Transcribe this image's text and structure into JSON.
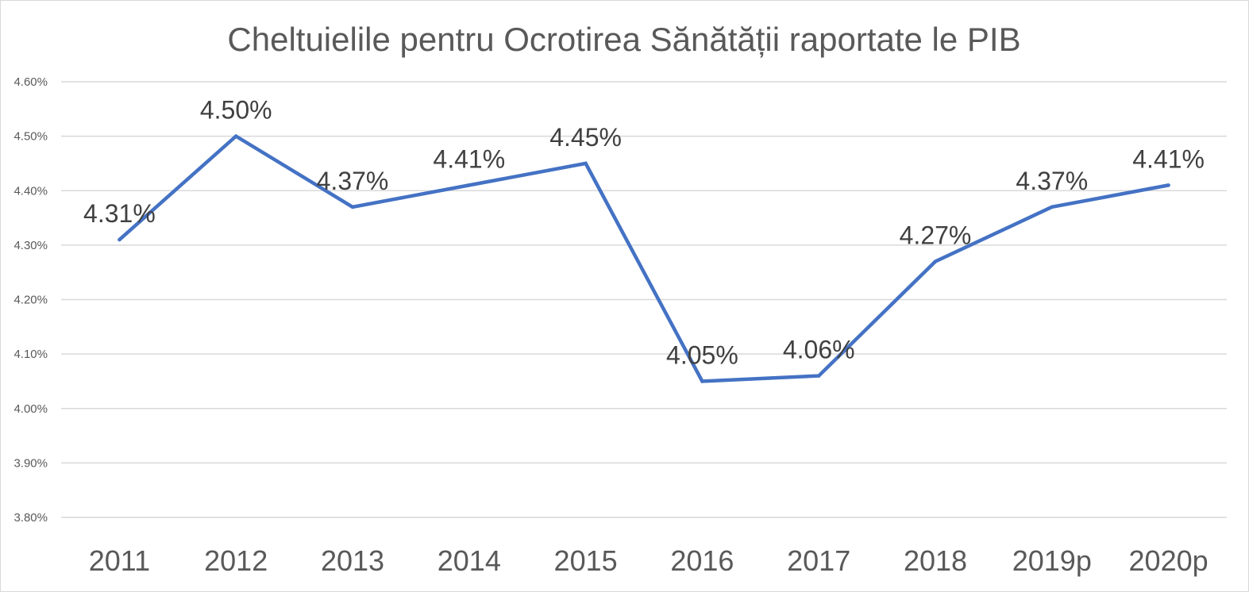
{
  "chart_data": {
    "type": "line",
    "title": "Cheltuielile pentru Ocrotirea Sănătății raportate le PIB",
    "xlabel": "",
    "ylabel": "",
    "categories": [
      "2011",
      "2012",
      "2013",
      "2014",
      "2015",
      "2016",
      "2017",
      "2018",
      "2019p",
      "2020p"
    ],
    "series": [
      {
        "values": [
          4.31,
          4.5,
          4.37,
          4.41,
          4.45,
          4.05,
          4.06,
          4.27,
          4.37,
          4.41
        ],
        "data_labels": [
          "4.31%",
          "4.50%",
          "4.37%",
          "4.41%",
          "4.45%",
          "4.05%",
          "4.06%",
          "4.27%",
          "4.37%",
          "4.41%"
        ],
        "color": "#4472C4"
      }
    ],
    "ylim": [
      3.8,
      4.6
    ],
    "yticks": [
      3.8,
      3.9,
      4.0,
      4.1,
      4.2,
      4.3,
      4.4,
      4.5,
      4.6
    ],
    "ytick_labels": [
      "3.80%",
      "3.90%",
      "4.00%",
      "4.10%",
      "4.20%",
      "4.30%",
      "4.40%",
      "4.50%",
      "4.60%"
    ],
    "grid": true,
    "legend": "none"
  }
}
